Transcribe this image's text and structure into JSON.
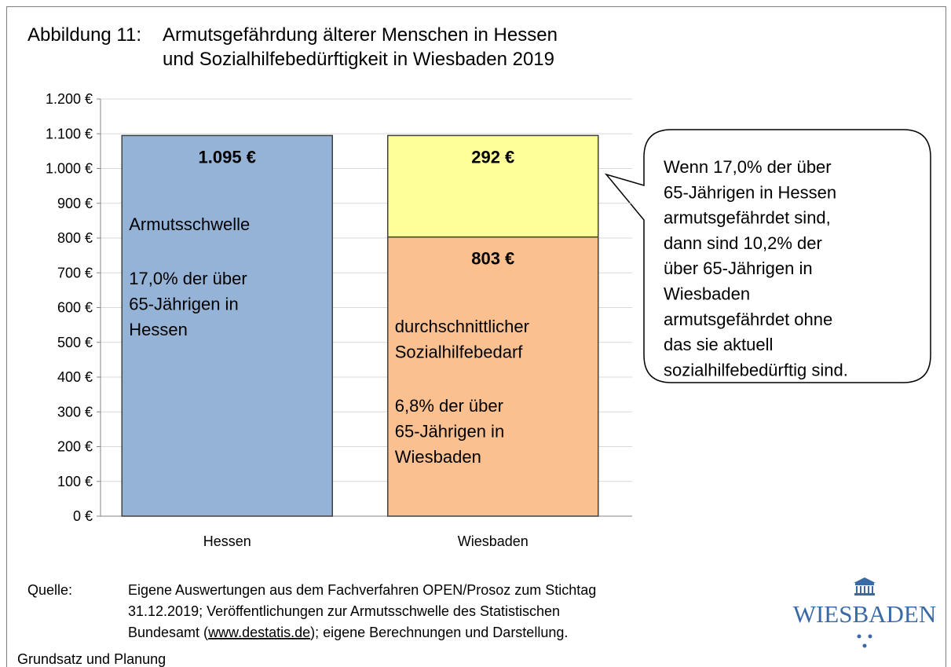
{
  "chart_data": {
    "type": "stacked-bar",
    "title_prefix": "Abbildung 11:",
    "title": [
      "Armutsgefährdung älterer Menschen in Hessen",
      "und Sozialhilfebedürftigkeit in Wiesbaden 2019"
    ],
    "categories": [
      "Hessen",
      "Wiesbaden"
    ],
    "series": [
      {
        "color": "#95b3d7",
        "values": [
          1095,
          null
        ],
        "value_labels": [
          "1.095 €",
          null
        ]
      },
      {
        "color": "#fac090",
        "values": [
          null,
          803
        ],
        "value_labels": [
          null,
          "803 €"
        ]
      },
      {
        "color": "#ffff99",
        "values": [
          null,
          292
        ],
        "value_labels": [
          null,
          "292 €"
        ]
      }
    ],
    "ylim": [
      0,
      1200
    ],
    "yticks": [
      {
        "value": 0,
        "label": "0 €"
      },
      {
        "value": 100,
        "label": "100 €"
      },
      {
        "value": 200,
        "label": "200 €"
      },
      {
        "value": 300,
        "label": "300 €"
      },
      {
        "value": 400,
        "label": "400 €"
      },
      {
        "value": 500,
        "label": "500 €"
      },
      {
        "value": 600,
        "label": "600 €"
      },
      {
        "value": 700,
        "label": "700 €"
      },
      {
        "value": 800,
        "label": "800 €"
      },
      {
        "value": 900,
        "label": "900 €"
      },
      {
        "value": 1000,
        "label": "1.000 €"
      },
      {
        "value": 1100,
        "label": "1.100 €"
      },
      {
        "value": 1200,
        "label": "1.200 €"
      }
    ],
    "grid": true,
    "annotations": [
      [
        "Armutsschwelle"
      ],
      [
        "17,0% der über",
        "65-Jährigen in",
        "Hessen"
      ],
      [
        "durchschnittlicher",
        "Sozialhilfebedarf"
      ],
      [
        "6,8% der über",
        "65-Jährigen in",
        "Wiesbaden"
      ]
    ],
    "callout": [
      "Wenn 17,0% der über",
      "65-Jährigen in Hessen",
      "armutsgefährdet sind,",
      "dann sind 10,2% der",
      "über 65-Jährigen in",
      "Wiesbaden",
      "armutsgefährdet ohne",
      "das sie aktuell",
      "sozialhilfebedürftig sind."
    ],
    "source": {
      "label": "Quelle:",
      "lines": [
        "Eigene Auswertungen aus dem Fachverfahren OPEN/Prosoz zum Stichtag",
        "31.12.2019; Veröffentlichungen zur Armutsschwelle des Statistischen"
      ],
      "last_line": [
        "Bundesamt (",
        "www.destatis.de",
        "); eigene Berechnungen und Darstellung."
      ]
    },
    "footer": "Grundsatz und Planung",
    "logo": "WIESBADEN"
  }
}
